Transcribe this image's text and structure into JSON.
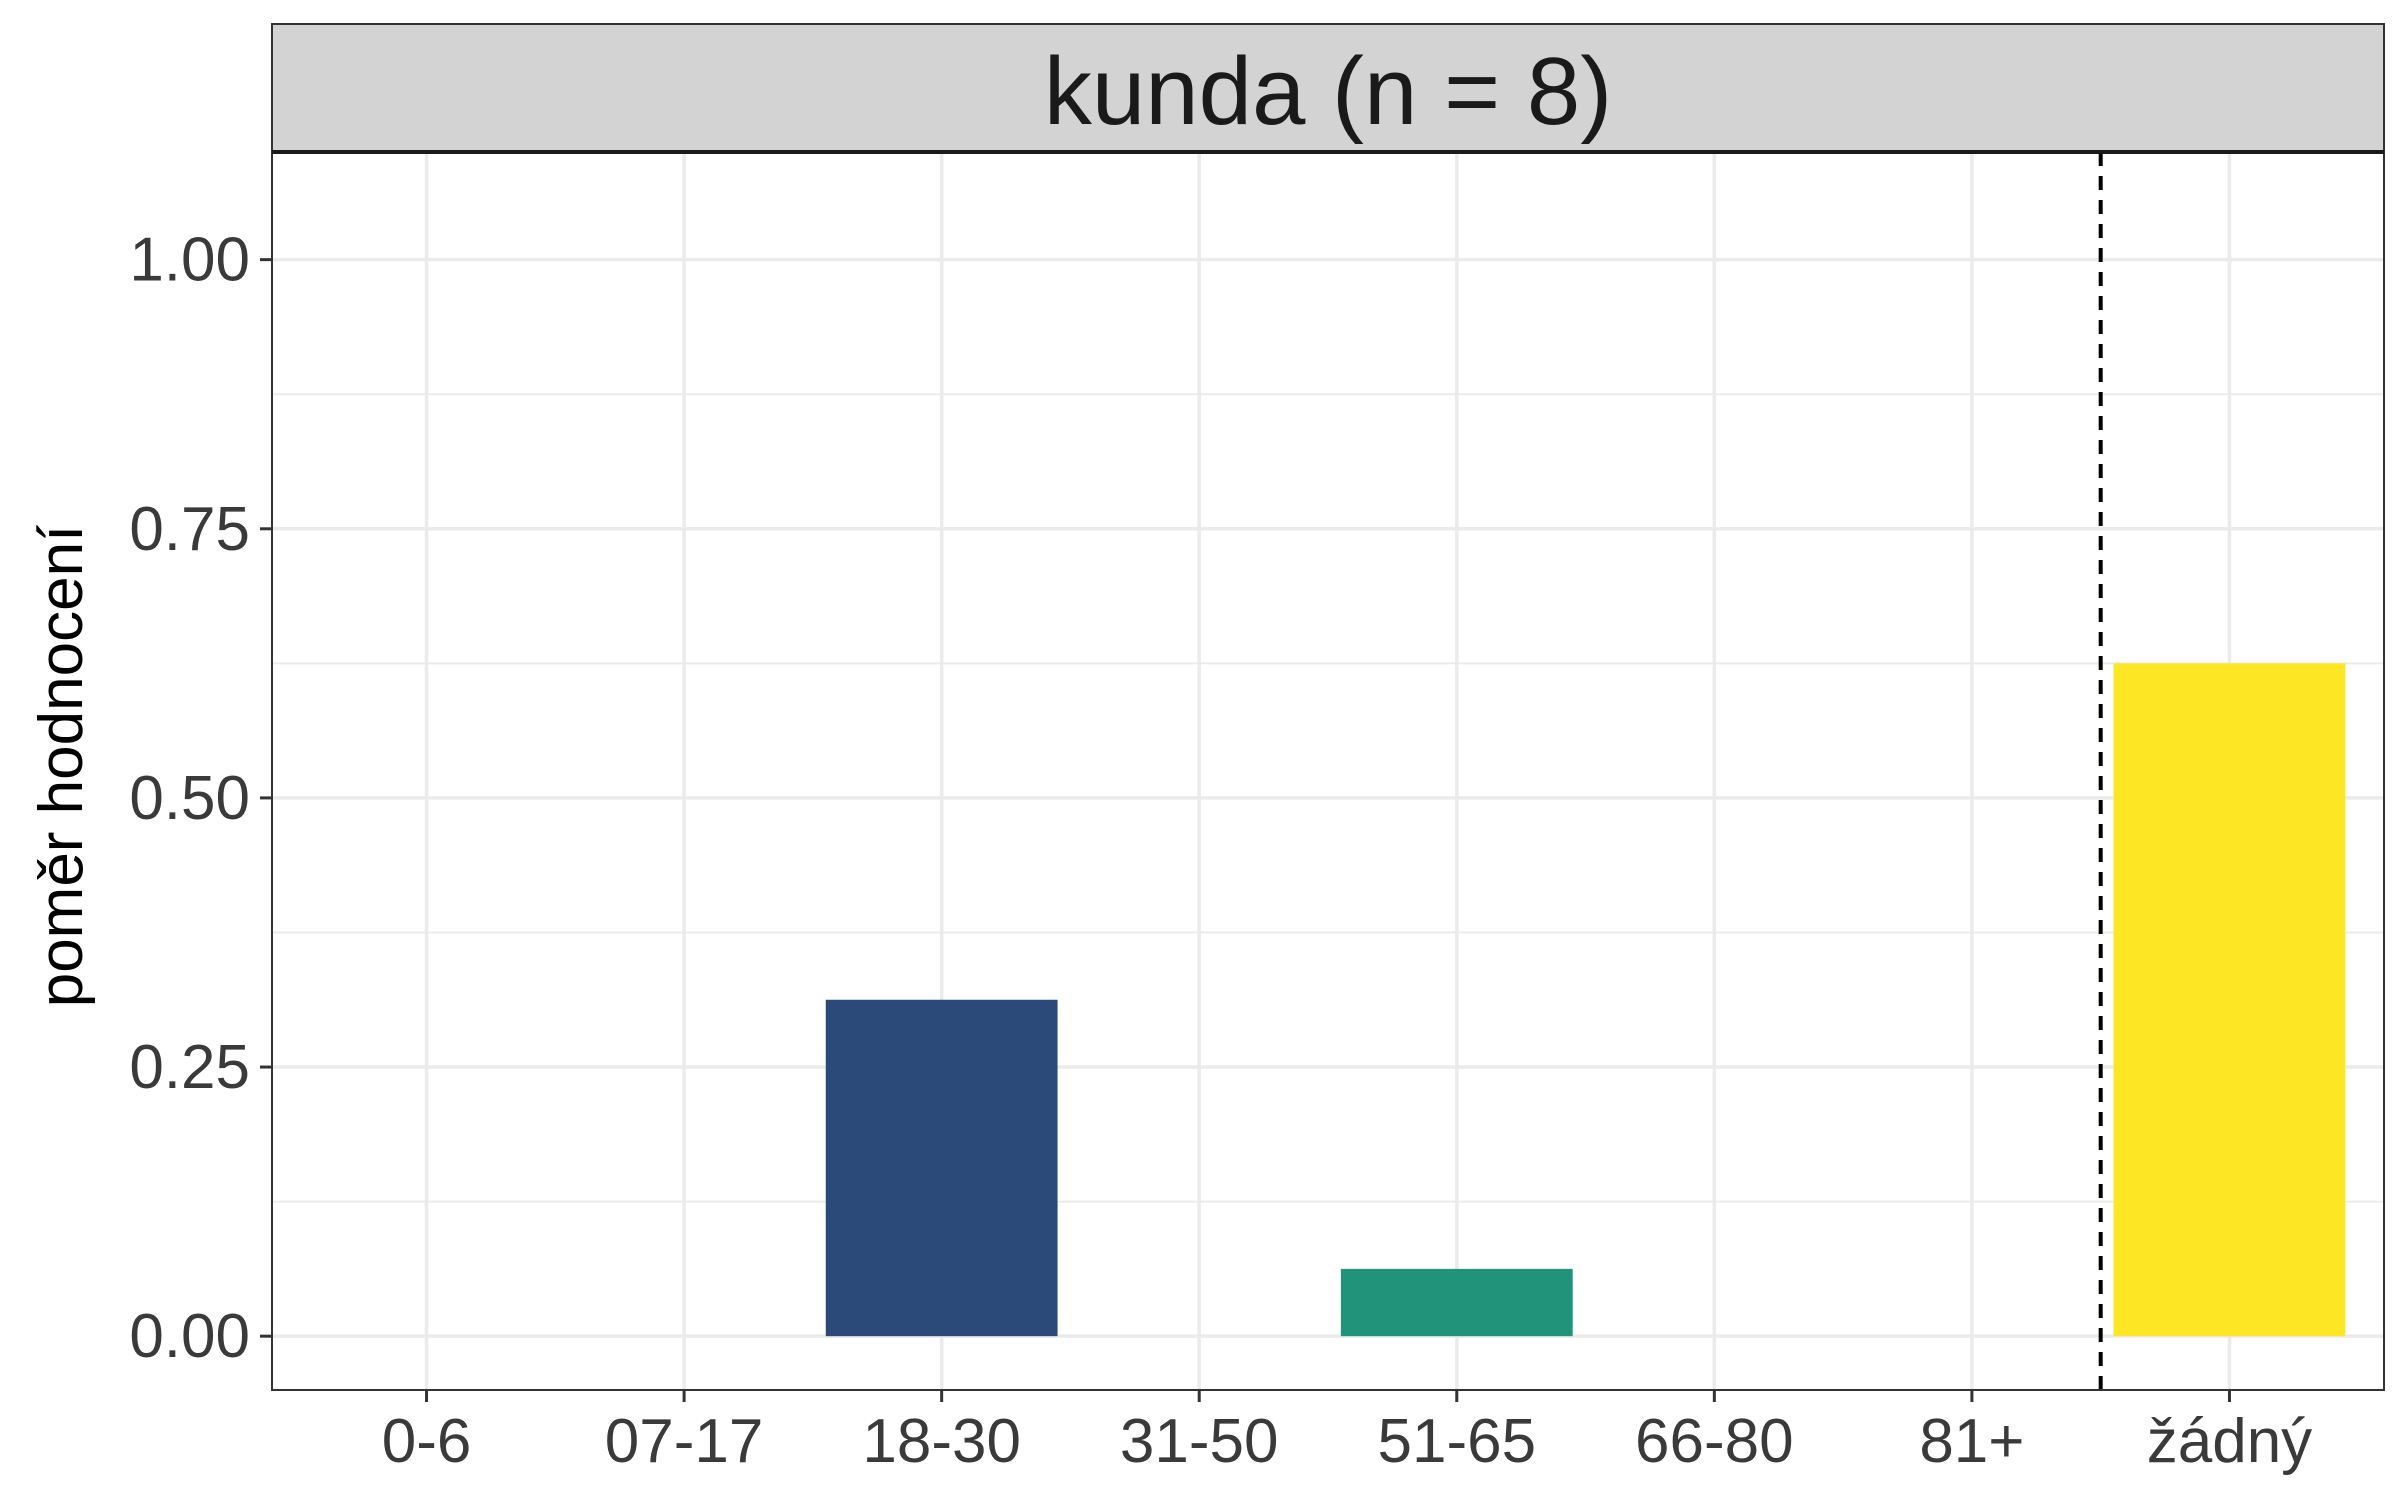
{
  "chart_data": {
    "type": "bar",
    "title": "kunda (n = 8)",
    "xlabel": "",
    "ylabel": "poměr hodnocení",
    "categories": [
      "0-6",
      "07-17",
      "18-30",
      "31-50",
      "51-65",
      "66-80",
      "81+",
      "žádný"
    ],
    "values": [
      0,
      0,
      0.3125,
      0,
      0.0625,
      0,
      0,
      0.625
    ],
    "bar_colors": [
      "#482878",
      "#3E4A89",
      "#2B4A7A",
      "#26828E",
      "#21937A",
      "#35B779",
      "#6DCD59",
      "#FDE725"
    ],
    "ylim": [
      -0.05,
      1.1
    ],
    "yticks": [
      0,
      0.25,
      0.5,
      0.75,
      1.0
    ],
    "ytick_labels": [
      "0.00",
      "0.25",
      "0.50",
      "0.75",
      "1.00"
    ],
    "grid": true,
    "reference_line": {
      "style": "dashed",
      "between": [
        "81+",
        "žádný"
      ]
    },
    "colors": {
      "strip": "#D3D3D3",
      "grid": "#EBEBEB",
      "panel_border": "#333333"
    }
  }
}
